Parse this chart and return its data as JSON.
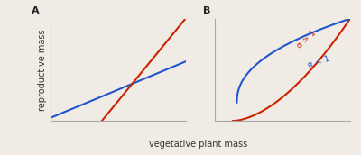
{
  "background_color": "#f0ebe4",
  "red_color": "#cc2200",
  "blue_color": "#2255cc",
  "panel_A_label": "A",
  "panel_B_label": "B",
  "xlabel": "vegetative plant mass",
  "ylabel": "reproductive mass",
  "annotation_alpha_gt1": "α > 1",
  "annotation_alpha_lt1": "α < 1",
  "label_fontsize": 6.5,
  "axis_label_fontsize": 7,
  "panel_label_fontsize": 8,
  "linewidth": 1.5,
  "spine_color": "#aaaaaa"
}
